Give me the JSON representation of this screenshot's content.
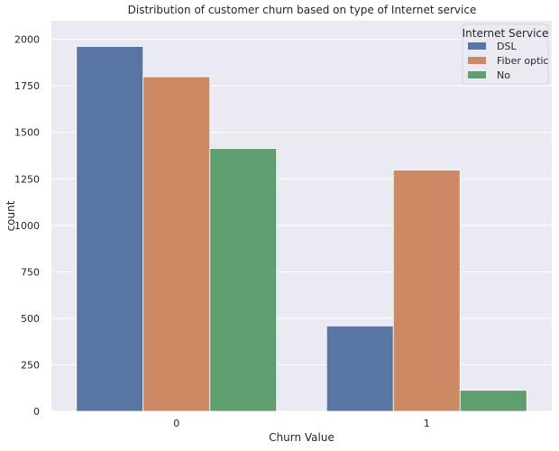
{
  "chart_data": {
    "type": "bar",
    "title": "Distribution of customer churn based on type of Internet service",
    "xlabel": "Churn Value",
    "ylabel": "count",
    "categories": [
      "0",
      "1"
    ],
    "ylim": [
      0,
      2100
    ],
    "yticks": [
      0,
      250,
      500,
      750,
      1000,
      1250,
      1500,
      1750,
      2000
    ],
    "grid": true,
    "legend": {
      "title": "Internet Service",
      "placement": "top-right"
    },
    "series": [
      {
        "name": "DSL",
        "color": "#5875a4",
        "values": [
          1962,
          459
        ]
      },
      {
        "name": "Fiber optic",
        "color": "#cc8963",
        "values": [
          1799,
          1297
        ]
      },
      {
        "name": "No",
        "color": "#5f9e6e",
        "values": [
          1413,
          113
        ]
      }
    ]
  }
}
